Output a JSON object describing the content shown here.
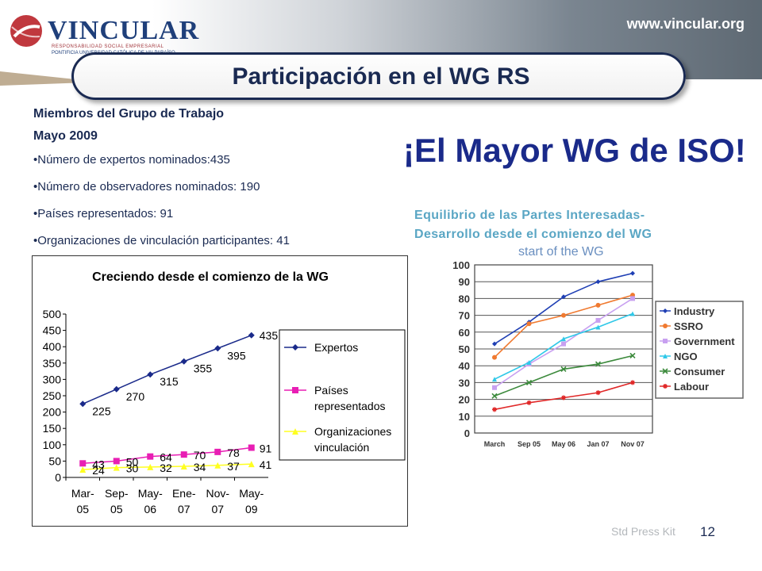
{
  "header": {
    "logo_name": "VINCULAR",
    "logo_tag1": "RESPONSABILIDAD SOCIAL EMPRESARIAL",
    "logo_tag2": "PONTIFICIA UNIVERSIDAD CATÓLICA DE VALPARAÍSO",
    "url": "www.vincular.org",
    "colors": {
      "navy": "#1a2a52",
      "logo_red": "#c0383e"
    }
  },
  "title": "Participación en el WG RS",
  "members": {
    "heading": "Miembros del Grupo de Trabajo",
    "date": "Mayo 2009",
    "bullets": [
      "•Número de expertos nominados:435",
      "•Número de observadores nominados: 190",
      "•Países representados: 91",
      "•Organizaciones de vinculación participantes: 41"
    ]
  },
  "headline": "¡El Mayor WG de ISO!",
  "right_caption": {
    "line1": "Equilibrio de las Partes Interesadas-",
    "line2": "Desarrollo desde el comienzo del WG",
    "image_title": "start of the WG"
  },
  "footer": {
    "kit": "Std Press Kit",
    "page": "12"
  },
  "chart_data": [
    {
      "type": "line",
      "title": "Creciendo desde el comienzo de la WG",
      "categories": [
        [
          "Mar-",
          "05"
        ],
        [
          "Sep-",
          "05"
        ],
        [
          "May-",
          "06"
        ],
        [
          "Ene-",
          "07"
        ],
        [
          "Nov-",
          "07"
        ],
        [
          "May-",
          "09"
        ]
      ],
      "ylim": [
        0,
        500
      ],
      "yticks": [
        0,
        50,
        100,
        150,
        200,
        250,
        300,
        350,
        400,
        450,
        500
      ],
      "legend_position": "right",
      "series": [
        {
          "name": "Expertos",
          "name_lines": [
            "Expertos"
          ],
          "color": "#1a2a8a",
          "marker": "diamond",
          "values": [
            225,
            270,
            315,
            355,
            395,
            435
          ]
        },
        {
          "name": "Países representados",
          "name_lines": [
            "Países",
            "representados"
          ],
          "color": "#e81eb4",
          "marker": "square",
          "values": [
            43,
            50,
            64,
            70,
            78,
            91
          ]
        },
        {
          "name": "Organizaciones vinculación",
          "name_lines": [
            "Organizaciones",
            "vinculación"
          ],
          "color": "#ffff20",
          "marker": "triangle",
          "values": [
            24,
            30,
            32,
            34,
            37,
            41
          ]
        }
      ]
    },
    {
      "type": "line",
      "title": "start of the WG",
      "categories": [
        "March",
        "Sep 05",
        "May 06",
        "Jan 07",
        "Nov 07"
      ],
      "ylim": [
        0,
        100
      ],
      "yticks": [
        0,
        10,
        20,
        30,
        40,
        50,
        60,
        70,
        80,
        90,
        100
      ],
      "grid": true,
      "legend_position": "right",
      "series": [
        {
          "name": "Industry",
          "color": "#1f3fb4",
          "marker": "diamond",
          "values": [
            53,
            66,
            81,
            90,
            95
          ]
        },
        {
          "name": "SSRO",
          "color": "#f07a30",
          "marker": "circle",
          "values": [
            45,
            65,
            70,
            76,
            82
          ]
        },
        {
          "name": "Government",
          "color": "#c8a0f0",
          "marker": "square",
          "values": [
            27,
            41,
            53,
            67,
            80
          ]
        },
        {
          "name": "NGO",
          "color": "#30c8e8",
          "marker": "triangle",
          "values": [
            32,
            42,
            56,
            63,
            71
          ]
        },
        {
          "name": "Consumer",
          "color": "#3c8a3c",
          "marker": "x",
          "values": [
            22,
            30,
            38,
            41,
            46
          ]
        },
        {
          "name": "Labour",
          "color": "#e02828",
          "marker": "star",
          "values": [
            14,
            18,
            21,
            24,
            30
          ]
        }
      ]
    }
  ]
}
